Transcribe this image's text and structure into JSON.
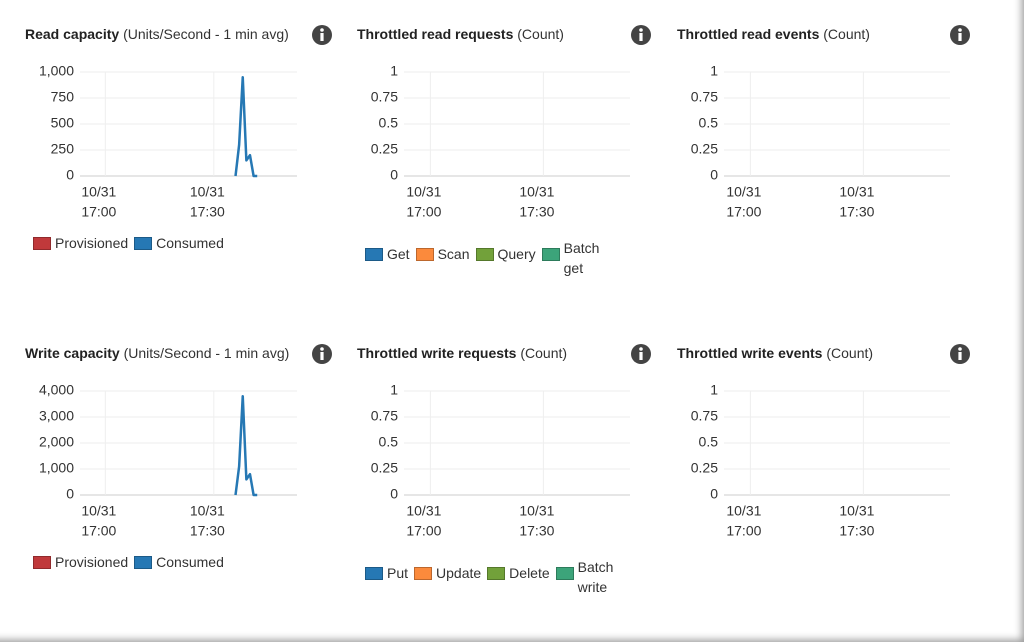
{
  "chart_data": [
    {
      "type": "line",
      "title": "Read capacity",
      "subtitle": "(Units/Second - 1 min avg)",
      "x": [
        "10/31 17:36",
        "10/31 17:37",
        "10/31 17:38",
        "10/31 17:39",
        "10/31 17:40",
        "10/31 17:41",
        "10/31 17:42"
      ],
      "series": [
        {
          "name": "Provisioned",
          "color": "#c0393b",
          "values": [
            null,
            null,
            null,
            null,
            null,
            null,
            null
          ]
        },
        {
          "name": "Consumed",
          "color": "#2678b4",
          "values": [
            0,
            300,
            950,
            150,
            200,
            0,
            0
          ]
        }
      ],
      "xlim": [
        "10/31 16:53",
        "10/31 17:53"
      ],
      "xticks": [
        {
          "value": "10/31 17:00",
          "label": [
            "10/31",
            "17:00"
          ]
        },
        {
          "value": "10/31 17:30",
          "label": [
            "10/31",
            "17:30"
          ]
        }
      ],
      "ylim": [
        0,
        1000
      ],
      "yticks": [
        0,
        250,
        500,
        750,
        {
          "value": 1000,
          "label": "1,000"
        }
      ],
      "grid": true
    },
    {
      "type": "line",
      "title": "Throttled read requests",
      "subtitle": "(Count)",
      "x": [],
      "series": [
        {
          "name": "Get",
          "color": "#2678b4",
          "values": []
        },
        {
          "name": "Scan",
          "color": "#fb8a3c",
          "values": []
        },
        {
          "name": "Query",
          "color": "#72a13a",
          "values": []
        },
        {
          "name": "Batch get",
          "color": "#3ca47a",
          "values": []
        }
      ],
      "xlim": [
        "10/31 16:53",
        "10/31 17:53"
      ],
      "xticks": [
        {
          "value": "10/31 17:00",
          "label": [
            "10/31",
            "17:00"
          ]
        },
        {
          "value": "10/31 17:30",
          "label": [
            "10/31",
            "17:30"
          ]
        }
      ],
      "ylim": [
        0,
        1
      ],
      "yticks": [
        0,
        0.25,
        0.5,
        0.75,
        1
      ],
      "grid": true
    },
    {
      "type": "line",
      "title": "Throttled read events",
      "subtitle": "(Count)",
      "x": [],
      "series": [],
      "xlim": [
        "10/31 16:53",
        "10/31 17:53"
      ],
      "xticks": [
        {
          "value": "10/31 17:00",
          "label": [
            "10/31",
            "17:00"
          ]
        },
        {
          "value": "10/31 17:30",
          "label": [
            "10/31",
            "17:30"
          ]
        }
      ],
      "ylim": [
        0,
        1
      ],
      "yticks": [
        0,
        0.25,
        0.5,
        0.75,
        1
      ],
      "grid": true
    },
    {
      "type": "line",
      "title": "Write capacity",
      "subtitle": "(Units/Second - 1 min avg)",
      "x": [
        "10/31 17:36",
        "10/31 17:37",
        "10/31 17:38",
        "10/31 17:39",
        "10/31 17:40",
        "10/31 17:41",
        "10/31 17:42"
      ],
      "series": [
        {
          "name": "Provisioned",
          "color": "#c0393b",
          "values": [
            null,
            null,
            null,
            null,
            null,
            null,
            null
          ]
        },
        {
          "name": "Consumed",
          "color": "#2678b4",
          "values": [
            0,
            1100,
            3800,
            600,
            800,
            0,
            0
          ]
        }
      ],
      "xlim": [
        "10/31 16:53",
        "10/31 17:53"
      ],
      "xticks": [
        {
          "value": "10/31 17:00",
          "label": [
            "10/31",
            "17:00"
          ]
        },
        {
          "value": "10/31 17:30",
          "label": [
            "10/31",
            "17:30"
          ]
        }
      ],
      "ylim": [
        0,
        4000
      ],
      "yticks": [
        0,
        {
          "value": 1000,
          "label": "1,000"
        },
        {
          "value": 2000,
          "label": "2,000"
        },
        {
          "value": 3000,
          "label": "3,000"
        },
        {
          "value": 4000,
          "label": "4,000"
        }
      ],
      "grid": true
    },
    {
      "type": "line",
      "title": "Throttled write requests",
      "subtitle": "(Count)",
      "x": [],
      "series": [
        {
          "name": "Put",
          "color": "#2678b4",
          "values": []
        },
        {
          "name": "Update",
          "color": "#fb8a3c",
          "values": []
        },
        {
          "name": "Delete",
          "color": "#72a13a",
          "values": []
        },
        {
          "name": "Batch write",
          "color": "#3ca47a",
          "values": []
        }
      ],
      "xlim": [
        "10/31 16:53",
        "10/31 17:53"
      ],
      "xticks": [
        {
          "value": "10/31 17:00",
          "label": [
            "10/31",
            "17:00"
          ]
        },
        {
          "value": "10/31 17:30",
          "label": [
            "10/31",
            "17:30"
          ]
        }
      ],
      "ylim": [
        0,
        1
      ],
      "yticks": [
        0,
        0.25,
        0.5,
        0.75,
        1
      ],
      "grid": true
    },
    {
      "type": "line",
      "title": "Throttled write events",
      "subtitle": "(Count)",
      "x": [],
      "series": [],
      "xlim": [
        "10/31 16:53",
        "10/31 17:53"
      ],
      "xticks": [
        {
          "value": "10/31 17:00",
          "label": [
            "10/31",
            "17:00"
          ]
        },
        {
          "value": "10/31 17:30",
          "label": [
            "10/31",
            "17:30"
          ]
        }
      ],
      "ylim": [
        0,
        1
      ],
      "yticks": [
        0,
        0.25,
        0.5,
        0.75,
        1
      ],
      "grid": true
    }
  ]
}
